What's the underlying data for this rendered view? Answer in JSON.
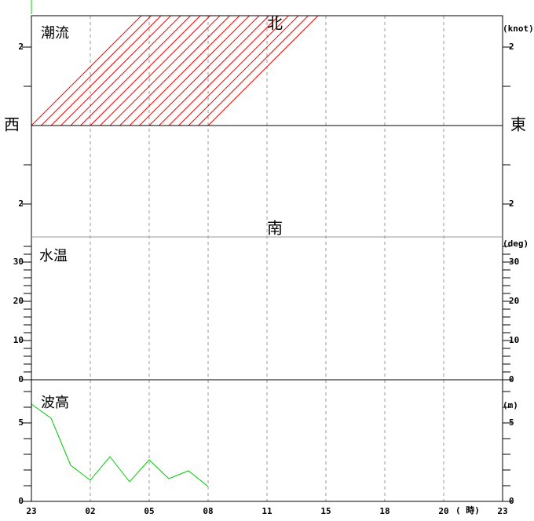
{
  "chart_data": [
    {
      "type": "vector",
      "title": "潮流",
      "unit": "(knot)",
      "directions": {
        "north": "北",
        "south": "南",
        "west": "西",
        "east": "東"
      },
      "ylim": [
        -2.84,
        2.8
      ],
      "yticks": [
        2,
        {
          "value": -2,
          "label": "2"
        }
      ],
      "yminor": [
        1,
        -1
      ],
      "color": "#ff0000",
      "x": [
        0,
        0.5,
        1,
        1.5,
        2,
        2.5,
        3,
        3.5,
        4,
        4.5,
        5,
        5.5,
        6,
        6.5,
        7,
        7.5,
        8,
        8.5,
        9
      ],
      "east": [
        3,
        3,
        3,
        3,
        3,
        3,
        3,
        3,
        3,
        3,
        3,
        3,
        3,
        3,
        3,
        3,
        3,
        3,
        3
      ],
      "north": [
        3,
        3,
        3,
        3,
        3,
        3,
        3,
        3,
        3,
        3,
        3,
        3,
        3,
        3,
        3,
        3,
        3,
        3,
        3
      ]
    },
    {
      "type": "line",
      "title": "水温",
      "unit": "(deg)",
      "ylim": [
        0,
        36.4
      ],
      "yticks": [
        0,
        10,
        20,
        30
      ],
      "yminor": [
        2,
        4,
        6,
        8,
        12,
        14,
        16,
        18,
        22,
        24,
        26,
        28,
        32,
        34
      ]
    },
    {
      "type": "line",
      "title": "波高",
      "unit": "(m)",
      "ylim": [
        0,
        7.75
      ],
      "yticks": [
        0,
        5
      ],
      "yminor": [
        1,
        2,
        3,
        4,
        6,
        7
      ],
      "color": "#00cc00",
      "x": [
        0,
        1,
        2,
        3,
        4,
        5,
        6,
        7,
        8,
        9
      ],
      "values": [
        6.2,
        5.3,
        2.3,
        1.35,
        2.85,
        1.25,
        2.65,
        1.45,
        1.95,
        0.95
      ],
      "xlim": [
        0,
        24
      ],
      "xticks": [
        {
          "value": 0,
          "label": "23"
        },
        {
          "value": 3,
          "label": "02"
        },
        {
          "value": 6,
          "label": "05"
        },
        {
          "value": 9,
          "label": "08"
        },
        {
          "value": 12,
          "label": "11"
        },
        15,
        18,
        {
          "value": 21,
          "label": "20"
        },
        {
          "value": 24,
          "label": "23"
        }
      ],
      "xlabel": "( 時)"
    }
  ]
}
